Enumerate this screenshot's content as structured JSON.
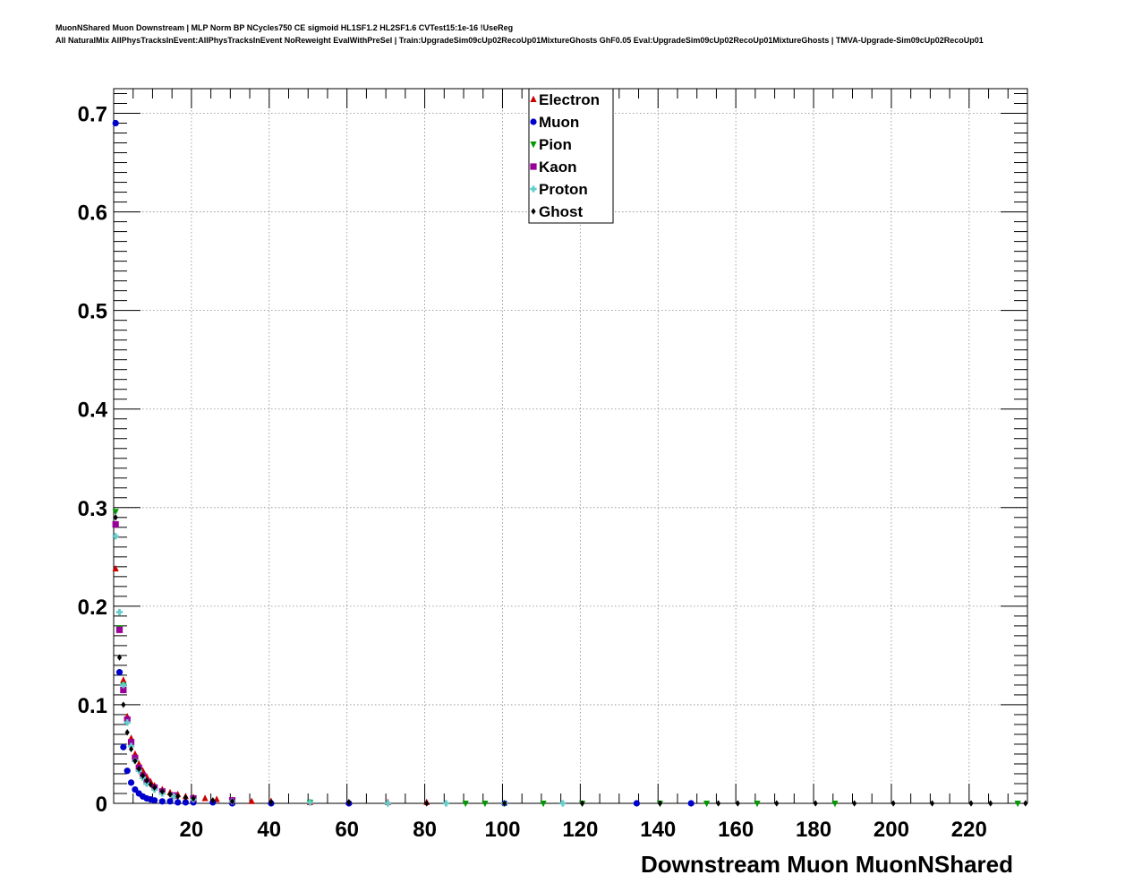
{
  "header": {
    "title_line1": "MuonNShared Muon Downstream | MLP Norm BP NCycles750 CE sigmoid HL1SF1.2 HL2SF1.6 CVTest15:1e-16 !UseReg",
    "title_line2": "All NaturalMix AllPhysTracksInEvent:AllPhysTracksInEvent NoReweight EvalWithPreSel | Train:UpgradeSim09cUp02RecoUp01MixtureGhosts GhF0.05 Eval:UpgradeSim09cUp02RecoUp01MixtureGhosts | TMVA-Upgrade-Sim09cUp02RecoUp01"
  },
  "chart_data": {
    "type": "scatter",
    "title": "",
    "xlabel": "Downstream Muon MuonNShared",
    "ylabel": "",
    "xlim": [
      0,
      235
    ],
    "ylim": [
      0,
      0.725
    ],
    "grid": true,
    "legend_position": "top-center",
    "x_ticks": [
      20,
      40,
      60,
      80,
      100,
      120,
      140,
      160,
      180,
      200,
      220
    ],
    "x_tick_labels": [
      "20",
      "40",
      "60",
      "80",
      "100",
      "120",
      "140",
      "160",
      "180",
      "200",
      "220"
    ],
    "y_ticks": [
      0,
      0.1,
      0.2,
      0.3,
      0.4,
      0.5,
      0.6,
      0.7
    ],
    "y_tick_labels": [
      "0",
      "0.1",
      "0.2",
      "0.3",
      "0.4",
      "0.5",
      "0.6",
      "0.7"
    ],
    "series": [
      {
        "name": "Electron",
        "color": "#cc0000",
        "marker": "triangle-up",
        "x": [
          0.5,
          1.5,
          2.5,
          3.5,
          4.5,
          5.5,
          6.5,
          7.5,
          8.5,
          9.5,
          10.5,
          12.5,
          14.5,
          16.5,
          18.5,
          20.5,
          23.5,
          26.5,
          30.5,
          35.5,
          40.5,
          50.5,
          60.5,
          70.5,
          80.5
        ],
        "y": [
          0.238,
          0.177,
          0.125,
          0.088,
          0.066,
          0.05,
          0.04,
          0.033,
          0.027,
          0.022,
          0.018,
          0.014,
          0.011,
          0.009,
          0.007,
          0.006,
          0.005,
          0.004,
          0.003,
          0.002,
          0.002,
          0.001,
          0.001,
          0.001,
          0.001
        ]
      },
      {
        "name": "Muon",
        "color": "#0000cc",
        "marker": "circle",
        "x": [
          0.5,
          1.5,
          2.5,
          3.5,
          4.5,
          5.5,
          6.5,
          7.5,
          8.5,
          9.5,
          10.5,
          12.5,
          14.5,
          16.5,
          18.5,
          20.5,
          25.5,
          30.5,
          40.5,
          60.5,
          100.5,
          134.5,
          148.5
        ],
        "y": [
          0.69,
          0.133,
          0.057,
          0.033,
          0.021,
          0.014,
          0.01,
          0.007,
          0.005,
          0.004,
          0.003,
          0.002,
          0.002,
          0.001,
          0.001,
          0.001,
          0.001,
          0.0,
          0.0,
          0.0,
          0.0,
          0.0,
          0.0
        ]
      },
      {
        "name": "Pion",
        "color": "#009900",
        "marker": "triangle-down",
        "x": [
          0.5,
          1.5,
          2.5,
          3.5,
          4.5,
          5.5,
          6.5,
          7.5,
          8.5,
          10.5,
          12.5,
          15.5,
          20.5,
          30.5,
          50.5,
          90.5,
          95.5,
          110.5,
          120.5,
          140.5,
          152.5,
          165.5,
          185.5,
          232.5
        ],
        "y": [
          0.296,
          0.178,
          0.12,
          0.084,
          0.062,
          0.045,
          0.035,
          0.028,
          0.022,
          0.016,
          0.012,
          0.008,
          0.005,
          0.003,
          0.001,
          0.0,
          0.0,
          0.0,
          0.0,
          0.0,
          0.0,
          0.0,
          0.0,
          0.0
        ]
      },
      {
        "name": "Kaon",
        "color": "#990099",
        "marker": "square",
        "x": [
          0.5,
          1.5,
          2.5,
          3.5,
          4.5,
          5.5,
          6.5,
          7.5,
          8.5,
          10.5,
          12.5,
          15.5,
          20.5,
          30.5
        ],
        "y": [
          0.283,
          0.176,
          0.115,
          0.085,
          0.062,
          0.046,
          0.036,
          0.028,
          0.022,
          0.016,
          0.012,
          0.008,
          0.005,
          0.003
        ]
      },
      {
        "name": "Proton",
        "color": "#66cccc",
        "marker": "cross",
        "x": [
          0.5,
          1.5,
          2.5,
          3.5,
          4.5,
          5.5,
          6.5,
          7.5,
          8.5,
          10.5,
          12.5,
          15.5,
          20.5,
          30.5,
          50.5,
          70.5,
          85.5,
          100.5,
          115.5
        ],
        "y": [
          0.271,
          0.194,
          0.12,
          0.082,
          0.058,
          0.043,
          0.033,
          0.026,
          0.02,
          0.014,
          0.01,
          0.007,
          0.004,
          0.002,
          0.001,
          0.0,
          0.0,
          0.0,
          0.0
        ]
      },
      {
        "name": "Ghost",
        "color": "#000000",
        "marker": "diamond",
        "x": [
          0.5,
          1.5,
          2.5,
          3.5,
          4.5,
          5.5,
          6.5,
          7.5,
          8.5,
          9.5,
          10.5,
          12.5,
          14.5,
          16.5,
          18.5,
          20.5,
          25.5,
          30.5,
          40.5,
          60.5,
          80.5,
          100.5,
          120.5,
          140.5,
          155.5,
          160.5,
          170.5,
          180.5,
          190.5,
          200.5,
          210.5,
          220.5,
          225.5,
          234.5
        ],
        "y": [
          0.29,
          0.148,
          0.1,
          0.072,
          0.055,
          0.043,
          0.035,
          0.028,
          0.023,
          0.019,
          0.016,
          0.012,
          0.009,
          0.007,
          0.006,
          0.005,
          0.003,
          0.002,
          0.001,
          0.001,
          0.0,
          0.0,
          0.0,
          0.0,
          0.0,
          0.0,
          0.0,
          0.0,
          0.0,
          0.0,
          0.0,
          0.0,
          0.0,
          0.0
        ]
      }
    ]
  }
}
